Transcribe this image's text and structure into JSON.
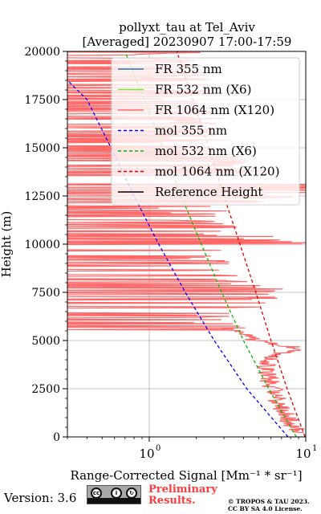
{
  "chart_data": {
    "type": "line",
    "title": "pollyxt_tau at Tel_Aviv",
    "subtitle": "[Averaged] 20230907 17:00-17:59",
    "xlabel": "Range-Corrected Signal [Mm⁻¹ * sr⁻¹]",
    "ylabel": "Height (m)",
    "xscale": "log",
    "xlim": [
      0.3,
      10
    ],
    "ylim": [
      0,
      20000
    ],
    "grid": true,
    "legend_position": "upper-right",
    "x_tick_labels": [
      "10^0",
      "10^1"
    ],
    "y_ticks": [
      0,
      2500,
      5000,
      7500,
      10000,
      12500,
      15000,
      17500,
      20000
    ],
    "series": [
      {
        "name": "FR 355 nm",
        "color": "#1f77b4",
        "style": "solid",
        "points": []
      },
      {
        "name": "FR 532 nm (X6)",
        "color": "#80e62e",
        "style": "solid",
        "points": []
      },
      {
        "name": "FR 1064 nm (X120)",
        "color": "#ff6666",
        "style": "solid",
        "profile": [
          [
            200,
            9.5
          ],
          [
            600,
            8.2
          ],
          [
            1000,
            7.6
          ],
          [
            1500,
            7.0
          ],
          [
            2000,
            6.6
          ],
          [
            2500,
            6.2
          ],
          [
            3000,
            5.9
          ],
          [
            3500,
            5.7
          ],
          [
            4000,
            5.9
          ],
          [
            4300,
            7.0
          ],
          [
            4600,
            9.0
          ],
          [
            5000,
            4.8
          ],
          [
            5500,
            3.4
          ],
          [
            6000,
            2.8
          ],
          [
            6500,
            3.1
          ],
          [
            7000,
            4.2
          ],
          [
            7500,
            5.6
          ],
          [
            8000,
            3.5
          ],
          [
            8500,
            2.5
          ],
          [
            9000,
            2.2
          ],
          [
            9500,
            2.0
          ],
          [
            10000,
            10.0
          ],
          [
            10500,
            4.0
          ],
          [
            11000,
            2.5
          ],
          [
            12000,
            2.2
          ],
          [
            13000,
            10.0
          ],
          [
            14000,
            3.0
          ],
          [
            15000,
            2.5
          ],
          [
            16000,
            2.2
          ],
          [
            17000,
            2.0
          ],
          [
            18000,
            1.8
          ],
          [
            19000,
            1.6
          ],
          [
            20000,
            1.5
          ]
        ]
      },
      {
        "name": "mol 355 nm",
        "color": "#0000ff",
        "style": "dashed",
        "points": [
          [
            7.7,
            0
          ],
          [
            4.2,
            2500
          ],
          [
            2.6,
            5000
          ],
          [
            1.7,
            7500
          ],
          [
            1.15,
            10000
          ],
          [
            0.8,
            12500
          ],
          [
            0.57,
            15000
          ],
          [
            0.4,
            17500
          ],
          [
            0.3,
            18500
          ]
        ]
      },
      {
        "name": "mol 532 nm (X6)",
        "color": "#00bb00",
        "style": "dashed",
        "points": [
          [
            8.7,
            0
          ],
          [
            5.8,
            2500
          ],
          [
            4.0,
            5000
          ],
          [
            2.9,
            7500
          ],
          [
            2.15,
            10000
          ],
          [
            1.6,
            12500
          ],
          [
            1.22,
            15000
          ],
          [
            0.93,
            17500
          ],
          [
            0.7,
            20000
          ]
        ]
      },
      {
        "name": "mol 1064 nm (X120)",
        "color": "#dd0000",
        "style": "dashed",
        "points": [
          [
            9.9,
            0
          ],
          [
            7.6,
            2500
          ],
          [
            6.0,
            5000
          ],
          [
            4.8,
            7500
          ],
          [
            3.8,
            10000
          ],
          [
            3.0,
            12500
          ],
          [
            2.4,
            15000
          ],
          [
            1.9,
            17500
          ],
          [
            1.5,
            20000
          ]
        ]
      },
      {
        "name": "Reference Height",
        "color": "#000000",
        "style": "solid",
        "points": []
      }
    ]
  },
  "footer": {
    "version": "Version: 3.6",
    "cc_label": "BY SA",
    "preliminary_line1": "Preliminary",
    "preliminary_line2": "Results.",
    "credit_line1": "© TROPOS & TAU 2023.",
    "credit_line2": "CC BY SA 4.0 License."
  }
}
